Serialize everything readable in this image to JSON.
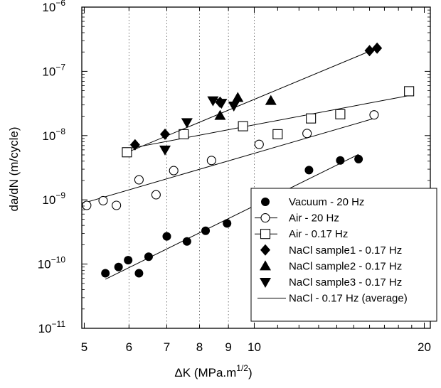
{
  "chart_data": {
    "type": "scatter",
    "xlabel_main": "ΔK (MPa.m",
    "xlabel_sup": "1/2",
    "xlabel_end": ")",
    "ylabel": "da/dN  (m/cycle)",
    "x_scale": "log",
    "y_scale": "log",
    "xlim": [
      4.95,
      20.5
    ],
    "ylim": [
      1e-11,
      1e-06
    ],
    "x_ticks": [
      {
        "value": 5,
        "label": "5"
      },
      {
        "value": 6,
        "label": "6"
      },
      {
        "value": 7,
        "label": "7"
      },
      {
        "value": 8,
        "label": "8"
      },
      {
        "value": 9,
        "label": "9"
      },
      {
        "value": 10,
        "label": "10"
      },
      {
        "value": 20,
        "label": "20"
      }
    ],
    "y_ticks": [
      {
        "value": 1e-06,
        "base": "10",
        "exp": "−6"
      },
      {
        "value": 1e-07,
        "base": "10",
        "exp": "−7"
      },
      {
        "value": 1e-08,
        "base": "10",
        "exp": "−8"
      },
      {
        "value": 1e-09,
        "base": "10",
        "exp": "−9"
      },
      {
        "value": 1e-10,
        "base": "10",
        "exp": "−10"
      },
      {
        "value": 1e-11,
        "base": "10",
        "exp": "−11"
      }
    ],
    "grid": "vertical dotted lines at x ticks 6-10",
    "legend_position": "bottom-right",
    "series": [
      {
        "name": "Vacuum - 20 Hz",
        "marker": "filled-circle",
        "x": [
          5.45,
          5.75,
          5.98,
          6.25,
          6.5,
          7.0,
          7.6,
          8.2,
          8.95,
          10.7,
          12.5,
          14.2,
          15.3
        ],
        "y": [
          7.2e-11,
          9e-11,
          1.15e-10,
          7.2e-11,
          1.3e-10,
          2.7e-10,
          2.25e-10,
          3.3e-10,
          4.3e-10,
          1.22e-09,
          2.9e-09,
          4.1e-09,
          4.3e-09
        ]
      },
      {
        "name": "Air - 20 Hz",
        "marker": "open-circle",
        "x": [
          5.05,
          5.4,
          5.7,
          6.25,
          6.7,
          7.2,
          8.4,
          10.2,
          12.4,
          16.3
        ],
        "y": [
          8.2e-10,
          9.7e-10,
          8.2e-10,
          2.05e-09,
          1.2e-09,
          2.85e-09,
          4.1e-09,
          7.3e-09,
          1.08e-08,
          2.1e-08
        ]
      },
      {
        "name": "Air - 0.17 Hz",
        "marker": "open-square",
        "x": [
          5.95,
          7.5,
          9.55,
          11.0,
          12.6,
          14.2,
          18.8
        ],
        "y": [
          5.5e-09,
          1.05e-08,
          1.4e-08,
          1.05e-08,
          1.85e-08,
          2.15e-08,
          4.9e-08
        ]
      },
      {
        "name": "NaCl sample1 - 0.17 Hz",
        "marker": "filled-diamond",
        "x": [
          6.15,
          6.95,
          8.7,
          16.0,
          16.5
        ],
        "y": [
          7.2e-09,
          1.05e-08,
          3.3e-08,
          2.1e-07,
          2.3e-07
        ]
      },
      {
        "name": "NaCl sample2 - 0.17 Hz",
        "marker": "filled-triangle-up",
        "x": [
          8.7,
          9.35,
          10.7
        ],
        "y": [
          2.05e-08,
          3.9e-08,
          3.5e-08
        ]
      },
      {
        "name": "NaCl sample3 - 0.17 Hz",
        "marker": "filled-triangle-down",
        "x": [
          6.95,
          7.6,
          8.45,
          8.75,
          9.2
        ],
        "y": [
          6e-09,
          1.6e-08,
          3.5e-08,
          3.2e-08,
          2.9e-08
        ]
      },
      {
        "name": "NaCl - 0.17 Hz (average)",
        "marker": "line",
        "x": [
          6.05,
          16.5
        ],
        "y": [
          5.8e-09,
          2.3e-07
        ]
      }
    ],
    "fit_lines": [
      {
        "series": "Vacuum - 20 Hz",
        "x": [
          5.45,
          15.3
        ],
        "y": [
          5.8e-11,
          5.1e-09
        ]
      },
      {
        "series": "Air - 20 Hz",
        "x": [
          5.05,
          16.3
        ],
        "y": [
          9.2e-10,
          1.85e-08
        ]
      },
      {
        "series": "Air - 0.17 Hz",
        "x": [
          5.95,
          18.8
        ],
        "y": [
          6.2e-09,
          4.2e-08
        ]
      }
    ]
  }
}
